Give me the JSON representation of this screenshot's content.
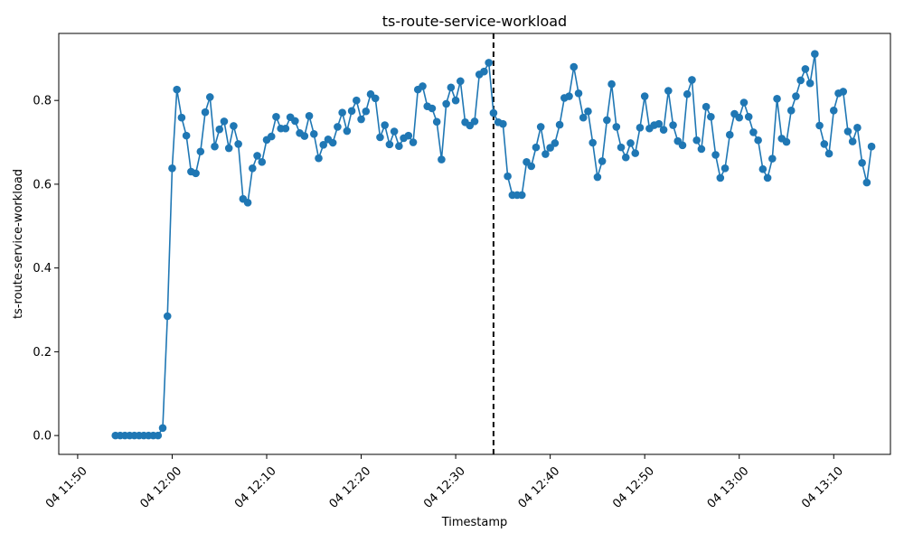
{
  "chart_data": {
    "type": "line",
    "title": "ts-route-service-workload",
    "xlabel": "Timestamp",
    "ylabel": "ts-route-service-workload",
    "xlim": [
      "04 11:48",
      "04 13:16"
    ],
    "ylim": [
      -0.045,
      0.96
    ],
    "x_ticks": [
      "04 11:50",
      "04 12:00",
      "04 12:10",
      "04 12:20",
      "04 12:30",
      "04 12:40",
      "04 12:50",
      "04 13:00",
      "04 13:10"
    ],
    "y_ticks": [
      "0.0",
      "0.2",
      "0.4",
      "0.6",
      "0.8"
    ],
    "y_tick_values": [
      0.0,
      0.2,
      0.4,
      0.6,
      0.8
    ],
    "marker_line": "04 12:34",
    "series_color": "#1f77b4",
    "x_start": "04 11:54",
    "x_step_minutes": 0.5,
    "series": [
      {
        "values": [
          0.0,
          0.0,
          0.0,
          0.0,
          0.0,
          0.0,
          0.0,
          0.0,
          0.0,
          0.0,
          0.018,
          0.285,
          0.638,
          0.826,
          0.759,
          0.716,
          0.63,
          0.626,
          0.678,
          0.772,
          0.808,
          0.69,
          0.731,
          0.75,
          0.686,
          0.739,
          0.696,
          0.565,
          0.556,
          0.638,
          0.668,
          0.653,
          0.706,
          0.714,
          0.761,
          0.733,
          0.733,
          0.76,
          0.751,
          0.722,
          0.715,
          0.763,
          0.72,
          0.662,
          0.694,
          0.707,
          0.699,
          0.737,
          0.771,
          0.727,
          0.775,
          0.8,
          0.755,
          0.774,
          0.815,
          0.805,
          0.712,
          0.741,
          0.695,
          0.726,
          0.691,
          0.71,
          0.716,
          0.7,
          0.826,
          0.834,
          0.786,
          0.781,
          0.749,
          0.659,
          0.792,
          0.831,
          0.8,
          0.846,
          0.748,
          0.74,
          0.75,
          0.862,
          0.869,
          0.89,
          0.77,
          0.748,
          0.744,
          0.619,
          0.574,
          0.574,
          0.574,
          0.653,
          0.643,
          0.688,
          0.737,
          0.672,
          0.687,
          0.698,
          0.742,
          0.806,
          0.81,
          0.88,
          0.817,
          0.759,
          0.774,
          0.699,
          0.617,
          0.655,
          0.753,
          0.839,
          0.737,
          0.688,
          0.664,
          0.698,
          0.674,
          0.735,
          0.81,
          0.733,
          0.741,
          0.744,
          0.73,
          0.823,
          0.741,
          0.703,
          0.693,
          0.815,
          0.849,
          0.705,
          0.684,
          0.785,
          0.761,
          0.67,
          0.615,
          0.638,
          0.718,
          0.768,
          0.759,
          0.795,
          0.761,
          0.724,
          0.705,
          0.636,
          0.615,
          0.661,
          0.804,
          0.709,
          0.701,
          0.776,
          0.81,
          0.848,
          0.875,
          0.841,
          0.911,
          0.74,
          0.696,
          0.673,
          0.776,
          0.817,
          0.821,
          0.726,
          0.702,
          0.735,
          0.651,
          0.604,
          0.69
        ]
      }
    ]
  }
}
